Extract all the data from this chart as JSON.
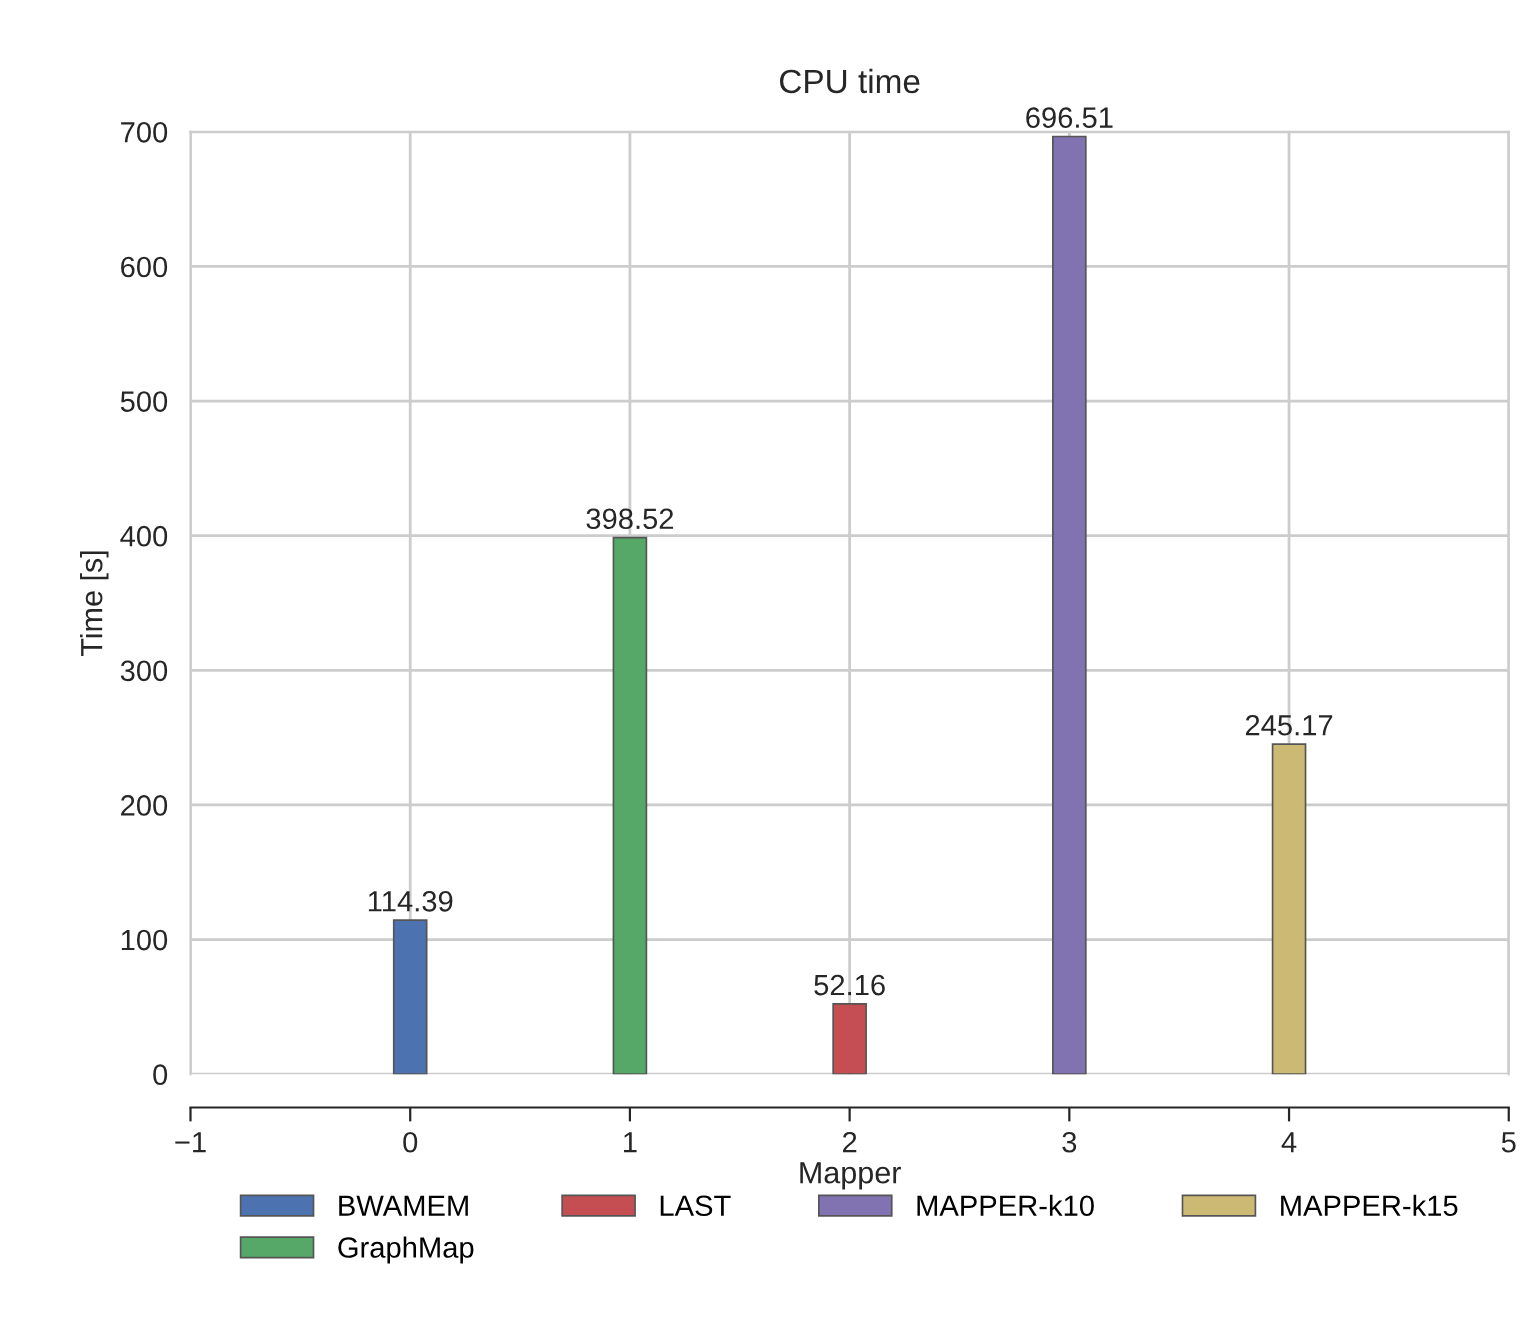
{
  "chart_data": {
    "type": "bar",
    "title": "CPU time",
    "xlabel": "Mapper",
    "ylabel": "Time [s]",
    "series": [
      {
        "name": "BWAMEM",
        "color": "#4c72b0",
        "x": [
          0
        ],
        "values": [
          114.39
        ]
      },
      {
        "name": "GraphMap",
        "color": "#55a868",
        "x": [
          1
        ],
        "values": [
          398.52
        ]
      },
      {
        "name": "LAST",
        "color": "#c44e52",
        "x": [
          2
        ],
        "values": [
          52.16
        ]
      },
      {
        "name": "MAPPER-k10",
        "color": "#8172b2",
        "x": [
          3
        ],
        "values": [
          696.51
        ]
      },
      {
        "name": "MAPPER-k15",
        "color": "#ccb974",
        "x": [
          4
        ],
        "values": [
          245.17
        ]
      }
    ],
    "xlim": [
      -1,
      5
    ],
    "xticks": [
      -1,
      0,
      1,
      2,
      3,
      4,
      5
    ],
    "ylim": [
      0,
      700
    ],
    "yticks": [
      0,
      100,
      200,
      300,
      400,
      500,
      600,
      700
    ],
    "grid": true,
    "legend": "bottom",
    "data_labels": true
  }
}
